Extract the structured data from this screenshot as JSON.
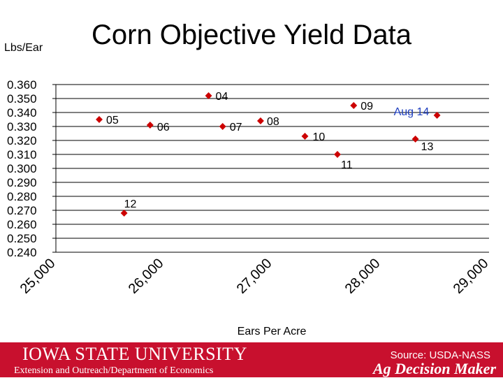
{
  "chart_data": {
    "type": "scatter",
    "title": "Corn Objective Yield Data",
    "ylabel": "Lbs/Ear",
    "xlabel": "Ears Per Acre",
    "xlim": [
      25000,
      29000
    ],
    "ylim": [
      0.24,
      0.36
    ],
    "x_ticks": [
      "25,000",
      "26,000",
      "27,000",
      "28,000",
      "29,000"
    ],
    "y_ticks": [
      "0.360",
      "0.350",
      "0.340",
      "0.330",
      "0.320",
      "0.310",
      "0.300",
      "0.290",
      "0.280",
      "0.270",
      "0.260",
      "0.250",
      "0.240"
    ],
    "grid": true,
    "marker_color": "#cc0000",
    "highlight_label_color": "#1f3fbf",
    "points": [
      {
        "label": "05",
        "x": 25400,
        "y": 0.335
      },
      {
        "label": "12",
        "x": 25630,
        "y": 0.268
      },
      {
        "label": "06",
        "x": 25870,
        "y": 0.331
      },
      {
        "label": "04",
        "x": 26410,
        "y": 0.352
      },
      {
        "label": "07",
        "x": 26540,
        "y": 0.33
      },
      {
        "label": "08",
        "x": 26890,
        "y": 0.334
      },
      {
        "label": "10",
        "x": 27300,
        "y": 0.323
      },
      {
        "label": "11",
        "x": 27600,
        "y": 0.31
      },
      {
        "label": "09",
        "x": 27750,
        "y": 0.345
      },
      {
        "label": "13",
        "x": 28320,
        "y": 0.321
      },
      {
        "label": "Aug 14",
        "x": 28520,
        "y": 0.338
      }
    ]
  },
  "footer": {
    "university": "IOWA STATE UNIVERSITY",
    "department": "Extension and Outreach/Department of Economics",
    "source": "Source: USDA-NASS",
    "brand": "Ag Decision Maker"
  }
}
